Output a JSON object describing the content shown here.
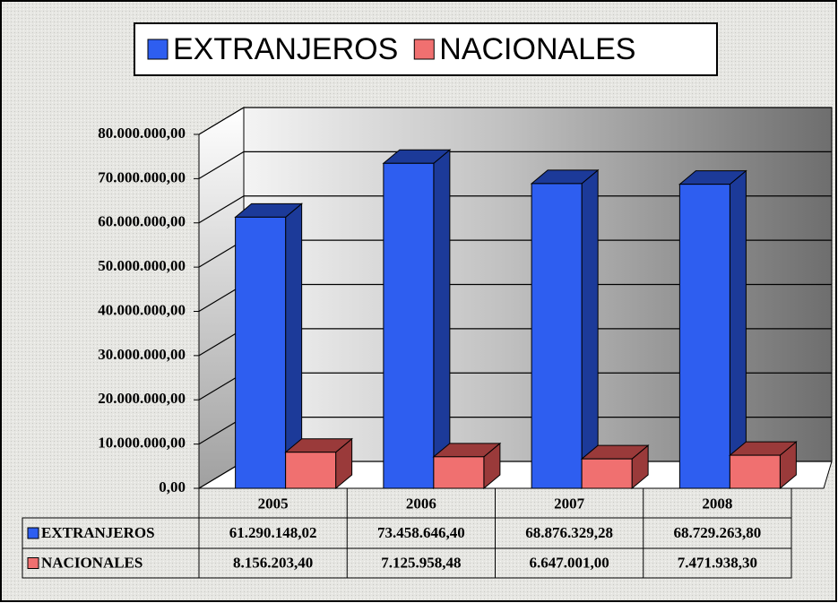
{
  "chart_data": {
    "type": "bar3d",
    "categories": [
      "2005",
      "2006",
      "2007",
      "2008"
    ],
    "series": [
      {
        "name": "EXTRANJEROS",
        "color": "#2e5ef0",
        "side": "#1c3a99",
        "values": [
          61290148.02,
          73458646.4,
          68876329.28,
          68729263.8
        ],
        "value_labels": [
          "61.290.148,02",
          "73.458.646,40",
          "68.876.329,28",
          "68.729.263,80"
        ]
      },
      {
        "name": "NACIONALES",
        "color": "#f07070",
        "side": "#9a3a3a",
        "values": [
          8156203.4,
          7125958.48,
          6647001.0,
          7471938.3
        ],
        "value_labels": [
          "8.156.203,40",
          "7.125.958,48",
          "6.647.001,00",
          "7.471.938,30"
        ]
      }
    ],
    "ylim": [
      0,
      80000000
    ],
    "yticks": [
      {
        "value": 0,
        "label": "0,00"
      },
      {
        "value": 10000000,
        "label": "10.000.000,00"
      },
      {
        "value": 20000000,
        "label": "20.000.000,00"
      },
      {
        "value": 30000000,
        "label": "30.000.000,00"
      },
      {
        "value": 40000000,
        "label": "40.000.000,00"
      },
      {
        "value": 50000000,
        "label": "50.000.000,00"
      },
      {
        "value": 60000000,
        "label": "60.000.000,00"
      },
      {
        "value": 70000000,
        "label": "70.000.000,00"
      },
      {
        "value": 80000000,
        "label": "80.000.000,00"
      }
    ],
    "grid": true,
    "legend": "top"
  }
}
